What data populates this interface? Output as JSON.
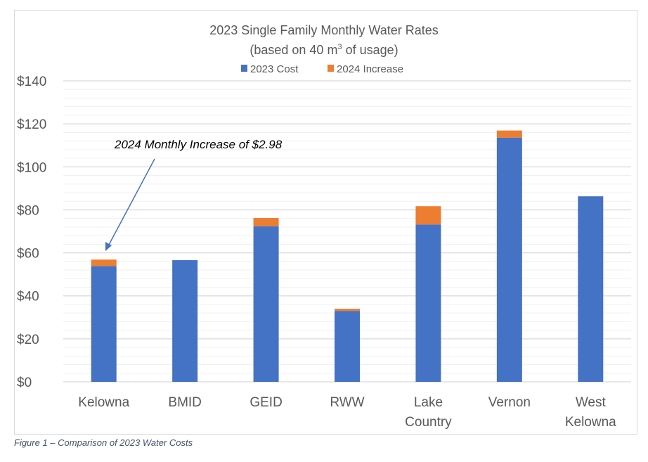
{
  "chart_data": {
    "type": "bar",
    "stacked": true,
    "title": "2023 Single Family Monthly Water Rates",
    "subtitle_prefix": "(based on 40 m",
    "subtitle_sup": "3",
    "subtitle_suffix": " of usage)",
    "categories": [
      "Kelowna",
      "BMID",
      "GEID",
      "RWW",
      "Lake Country",
      "Vernon",
      "West Kelowna"
    ],
    "category_lines": [
      [
        "Kelowna"
      ],
      [
        "BMID"
      ],
      [
        "GEID"
      ],
      [
        "RWW"
      ],
      [
        "Lake",
        "Country"
      ],
      [
        "Vernon"
      ],
      [
        "West",
        "Kelowna"
      ]
    ],
    "series": [
      {
        "name": "2023 Cost",
        "color": "#4472c4",
        "values": [
          53.9,
          56.6,
          72.4,
          33.0,
          73.2,
          113.6,
          86.3
        ]
      },
      {
        "name": "2024 Increase",
        "color": "#ed7d31",
        "values": [
          2.98,
          0,
          3.8,
          1.0,
          8.5,
          3.3,
          0
        ]
      }
    ],
    "ylim": [
      0,
      140
    ],
    "yticks": [
      "$0",
      "$20",
      "$40",
      "$60",
      "$80",
      "$100",
      "$120",
      "$140"
    ],
    "grid": true,
    "legend": "top",
    "annotation": "2024 Monthly Increase of $2.98"
  },
  "caption": "Figure 1 – Comparison of 2023 Water Costs"
}
